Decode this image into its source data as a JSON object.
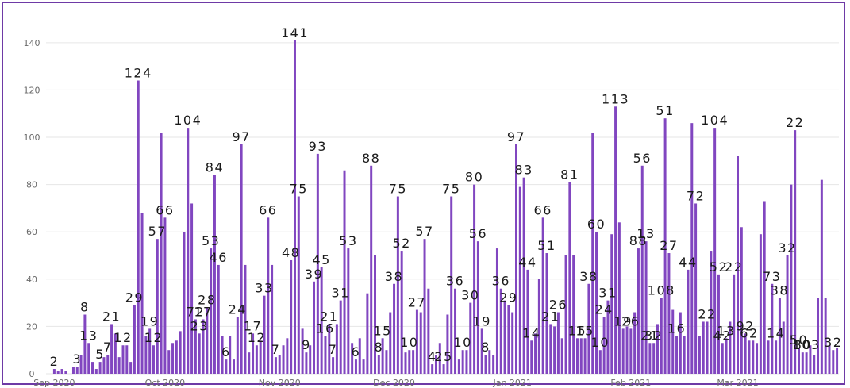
{
  "chart_data": {
    "type": "bar",
    "title": "",
    "xlabel": "",
    "ylabel": "",
    "ylim": [
      0,
      148
    ],
    "grid": true,
    "y_ticks": [
      0,
      20,
      40,
      60,
      80,
      100,
      120,
      140
    ],
    "x_tick_labels": [
      {
        "label": "Sep 2020",
        "index": 0
      },
      {
        "label": "Oct 2020",
        "index": 29
      },
      {
        "label": "Nov 2020",
        "index": 59
      },
      {
        "label": "Dec 2020",
        "index": 89
      },
      {
        "label": "Jan 2021",
        "index": 120
      },
      {
        "label": "Feb 2021",
        "index": 151
      },
      {
        "label": "Mar 2021",
        "index": 179
      }
    ],
    "bar_color": "#8146c0",
    "values": [
      2,
      1,
      2,
      1,
      0,
      3,
      3,
      8,
      25,
      13,
      5,
      2,
      5,
      7,
      8,
      21,
      17,
      7,
      12,
      12,
      5,
      29,
      124,
      68,
      16,
      19,
      12,
      57,
      102,
      66,
      10,
      13,
      14,
      18,
      60,
      104,
      72,
      23,
      17,
      23,
      28,
      53,
      84,
      46,
      16,
      6,
      16,
      6,
      24,
      97,
      46,
      9,
      17,
      12,
      14,
      33,
      66,
      46,
      7,
      8,
      12,
      15,
      48,
      141,
      75,
      19,
      9,
      12,
      39,
      93,
      45,
      16,
      21,
      7,
      21,
      31,
      86,
      53,
      13,
      6,
      15,
      6,
      34,
      88,
      50,
      8,
      15,
      10,
      26,
      38,
      75,
      52,
      9,
      10,
      10,
      27,
      26,
      57,
      36,
      4,
      8,
      13,
      4,
      25,
      75,
      36,
      6,
      10,
      10,
      30,
      80,
      56,
      19,
      8,
      10,
      8,
      53,
      36,
      31,
      29,
      26,
      97,
      79,
      83,
      44,
      14,
      17,
      40,
      66,
      51,
      21,
      20,
      26,
      15,
      50,
      81,
      50,
      15,
      15,
      15,
      38,
      102,
      60,
      10,
      24,
      31,
      59,
      113,
      64,
      19,
      20,
      19,
      26,
      53,
      88,
      56,
      13,
      13,
      21,
      32,
      108,
      51,
      27,
      16,
      26,
      16,
      44,
      106,
      72,
      16,
      22,
      22,
      52,
      104,
      42,
      13,
      15,
      22,
      42,
      92,
      62,
      17,
      14,
      14,
      13,
      59,
      73,
      14,
      38,
      14,
      32,
      22,
      50,
      80,
      103,
      11,
      9,
      9,
      12,
      8,
      32,
      82,
      32,
      12,
      10,
      11
    ],
    "data_labels": [
      {
        "index": 0,
        "text": "2"
      },
      {
        "index": 6,
        "text": "3"
      },
      {
        "index": 8,
        "text": "8"
      },
      {
        "index": 9,
        "text": "13"
      },
      {
        "index": 12,
        "text": "5"
      },
      {
        "index": 14,
        "text": "7"
      },
      {
        "index": 15,
        "text": "21"
      },
      {
        "index": 18,
        "text": "12"
      },
      {
        "index": 21,
        "text": "29"
      },
      {
        "index": 22,
        "text": "124"
      },
      {
        "index": 25,
        "text": "19"
      },
      {
        "index": 26,
        "text": "12"
      },
      {
        "index": 27,
        "text": "57"
      },
      {
        "index": 29,
        "text": "66"
      },
      {
        "index": 35,
        "text": "104"
      },
      {
        "index": 37,
        "text": "72"
      },
      {
        "index": 38,
        "text": "23"
      },
      {
        "index": 39,
        "text": "17"
      },
      {
        "index": 40,
        "text": "28"
      },
      {
        "index": 41,
        "text": "53"
      },
      {
        "index": 42,
        "text": "84"
      },
      {
        "index": 43,
        "text": "46"
      },
      {
        "index": 45,
        "text": "6"
      },
      {
        "index": 48,
        "text": "24"
      },
      {
        "index": 49,
        "text": "97"
      },
      {
        "index": 52,
        "text": "17"
      },
      {
        "index": 53,
        "text": "12"
      },
      {
        "index": 55,
        "text": "33"
      },
      {
        "index": 56,
        "text": "66"
      },
      {
        "index": 58,
        "text": "7"
      },
      {
        "index": 62,
        "text": "48"
      },
      {
        "index": 63,
        "text": "141"
      },
      {
        "index": 64,
        "text": "75"
      },
      {
        "index": 66,
        "text": "9"
      },
      {
        "index": 68,
        "text": "39"
      },
      {
        "index": 69,
        "text": "93"
      },
      {
        "index": 70,
        "text": "45"
      },
      {
        "index": 71,
        "text": "16"
      },
      {
        "index": 72,
        "text": "21"
      },
      {
        "index": 73,
        "text": "7"
      },
      {
        "index": 75,
        "text": "31"
      },
      {
        "index": 77,
        "text": "53"
      },
      {
        "index": 79,
        "text": "6"
      },
      {
        "index": 83,
        "text": "88"
      },
      {
        "index": 85,
        "text": "8"
      },
      {
        "index": 86,
        "text": "15"
      },
      {
        "index": 89,
        "text": "38"
      },
      {
        "index": 90,
        "text": "75"
      },
      {
        "index": 91,
        "text": "52"
      },
      {
        "index": 93,
        "text": "10"
      },
      {
        "index": 95,
        "text": "27"
      },
      {
        "index": 97,
        "text": "57"
      },
      {
        "index": 99,
        "text": "4"
      },
      {
        "index": 102,
        "text": "25"
      },
      {
        "index": 104,
        "text": "75"
      },
      {
        "index": 105,
        "text": "36"
      },
      {
        "index": 107,
        "text": "10"
      },
      {
        "index": 109,
        "text": "30"
      },
      {
        "index": 110,
        "text": "80"
      },
      {
        "index": 111,
        "text": "56"
      },
      {
        "index": 112,
        "text": "19"
      },
      {
        "index": 113,
        "text": "8"
      },
      {
        "index": 117,
        "text": "36"
      },
      {
        "index": 119,
        "text": "29"
      },
      {
        "index": 121,
        "text": "97"
      },
      {
        "index": 123,
        "text": "83"
      },
      {
        "index": 124,
        "text": "44"
      },
      {
        "index": 125,
        "text": "14"
      },
      {
        "index": 128,
        "text": "66"
      },
      {
        "index": 129,
        "text": "51"
      },
      {
        "index": 130,
        "text": "21"
      },
      {
        "index": 132,
        "text": "26"
      },
      {
        "index": 135,
        "text": "81"
      },
      {
        "index": 137,
        "text": "15"
      },
      {
        "index": 139,
        "text": "15"
      },
      {
        "index": 140,
        "text": "38"
      },
      {
        "index": 142,
        "text": "60"
      },
      {
        "index": 143,
        "text": "10"
      },
      {
        "index": 144,
        "text": "24"
      },
      {
        "index": 145,
        "text": "31"
      },
      {
        "index": 147,
        "text": "113"
      },
      {
        "index": 149,
        "text": "19"
      },
      {
        "index": 151,
        "text": "26"
      },
      {
        "index": 153,
        "text": "88"
      },
      {
        "index": 154,
        "text": "56"
      },
      {
        "index": 155,
        "text": "13"
      },
      {
        "index": 156,
        "text": "21"
      },
      {
        "index": 157,
        "text": "32"
      },
      {
        "index": 159,
        "text": "108"
      },
      {
        "index": 160,
        "text": "51"
      },
      {
        "index": 161,
        "text": "27"
      },
      {
        "index": 163,
        "text": "16"
      },
      {
        "index": 166,
        "text": "44"
      },
      {
        "index": 168,
        "text": "72"
      },
      {
        "index": 171,
        "text": "22"
      },
      {
        "index": 173,
        "text": "104"
      },
      {
        "index": 174,
        "text": "52"
      },
      {
        "index": 175,
        "text": "42"
      },
      {
        "index": 176,
        "text": "13"
      },
      {
        "index": 178,
        "text": "22"
      },
      {
        "index": 181,
        "text": "92"
      },
      {
        "index": 182,
        "text": "62"
      },
      {
        "index": 188,
        "text": "73"
      },
      {
        "index": 189,
        "text": "14"
      },
      {
        "index": 190,
        "text": "38"
      },
      {
        "index": 192,
        "text": "32"
      },
      {
        "index": 194,
        "text": "22"
      },
      {
        "index": 195,
        "text": "50"
      },
      {
        "index": 196,
        "text": "80"
      },
      {
        "index": 197,
        "text": "103"
      },
      {
        "index": 204,
        "text": "32"
      },
      {
        "index": 207,
        "text": "11"
      }
    ]
  }
}
